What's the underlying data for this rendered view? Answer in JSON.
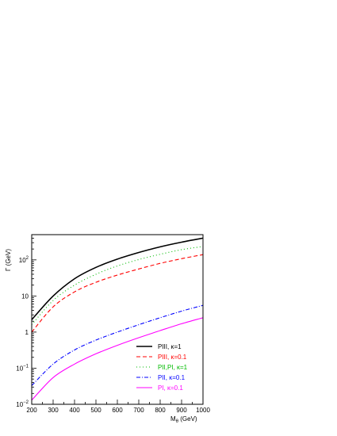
{
  "chart_data": {
    "type": "line",
    "title": "",
    "xlabel": "M",
    "xlabel_sub": "θ",
    "xlabel_unit": " (GeV)",
    "ylabel": "Γ (GeV)",
    "xlim": [
      200,
      1000
    ],
    "ylim": [
      0.01,
      500
    ],
    "yscale": "log",
    "grid": false,
    "legend_position": "bottom-right",
    "x_ticks": [
      200,
      300,
      400,
      500,
      600,
      700,
      800,
      900,
      1000
    ],
    "x_tick_labels": [
      "200",
      "300",
      "400",
      "500",
      "600",
      "700",
      "800",
      "900",
      "1000"
    ],
    "y_ticks": [
      {
        "value": 0.01,
        "base": "10",
        "exp": "−2"
      },
      {
        "value": 0.1,
        "base": "10",
        "exp": "−1"
      },
      {
        "value": 1,
        "base": "1",
        "exp": ""
      },
      {
        "value": 10,
        "base": "10",
        "exp": ""
      },
      {
        "value": 100,
        "base": "10",
        "exp": "2"
      }
    ],
    "series": [
      {
        "name": "PIII, κ=1",
        "color": "#000000",
        "style": "solid",
        "x": [
          200,
          300,
          400,
          500,
          600,
          700,
          800,
          900,
          1000
        ],
        "values": [
          2.2,
          10,
          30,
          62,
          105,
          160,
          230,
          310,
          400
        ]
      },
      {
        "name": "PIII, κ=0.1",
        "color": "#ff0000",
        "style": "dashed",
        "x": [
          200,
          300,
          400,
          500,
          600,
          700,
          800,
          900,
          1000
        ],
        "values": [
          1.0,
          5.0,
          13,
          24,
          38,
          56,
          80,
          108,
          140
        ]
      },
      {
        "name": "PII,PI, κ=1",
        "color": "#00bb00",
        "style": "dotted",
        "x": [
          200,
          300,
          400,
          500,
          600,
          700,
          800,
          900,
          1000
        ],
        "values": [
          1.6,
          7.5,
          20,
          40,
          68,
          102,
          143,
          192,
          235
        ]
      },
      {
        "name": "PII, κ=0.1",
        "color": "#0000ff",
        "style": "dashdot",
        "x": [
          200,
          300,
          400,
          500,
          600,
          700,
          800,
          900,
          1000
        ],
        "values": [
          0.033,
          0.13,
          0.32,
          0.6,
          1.0,
          1.6,
          2.5,
          3.8,
          5.5
        ]
      },
      {
        "name": "PI, κ=0.1",
        "color": "#ff00ff",
        "style": "solid",
        "x": [
          200,
          300,
          400,
          500,
          600,
          700,
          800,
          900,
          1000
        ],
        "values": [
          0.013,
          0.055,
          0.13,
          0.25,
          0.43,
          0.7,
          1.1,
          1.7,
          2.5
        ]
      }
    ]
  }
}
